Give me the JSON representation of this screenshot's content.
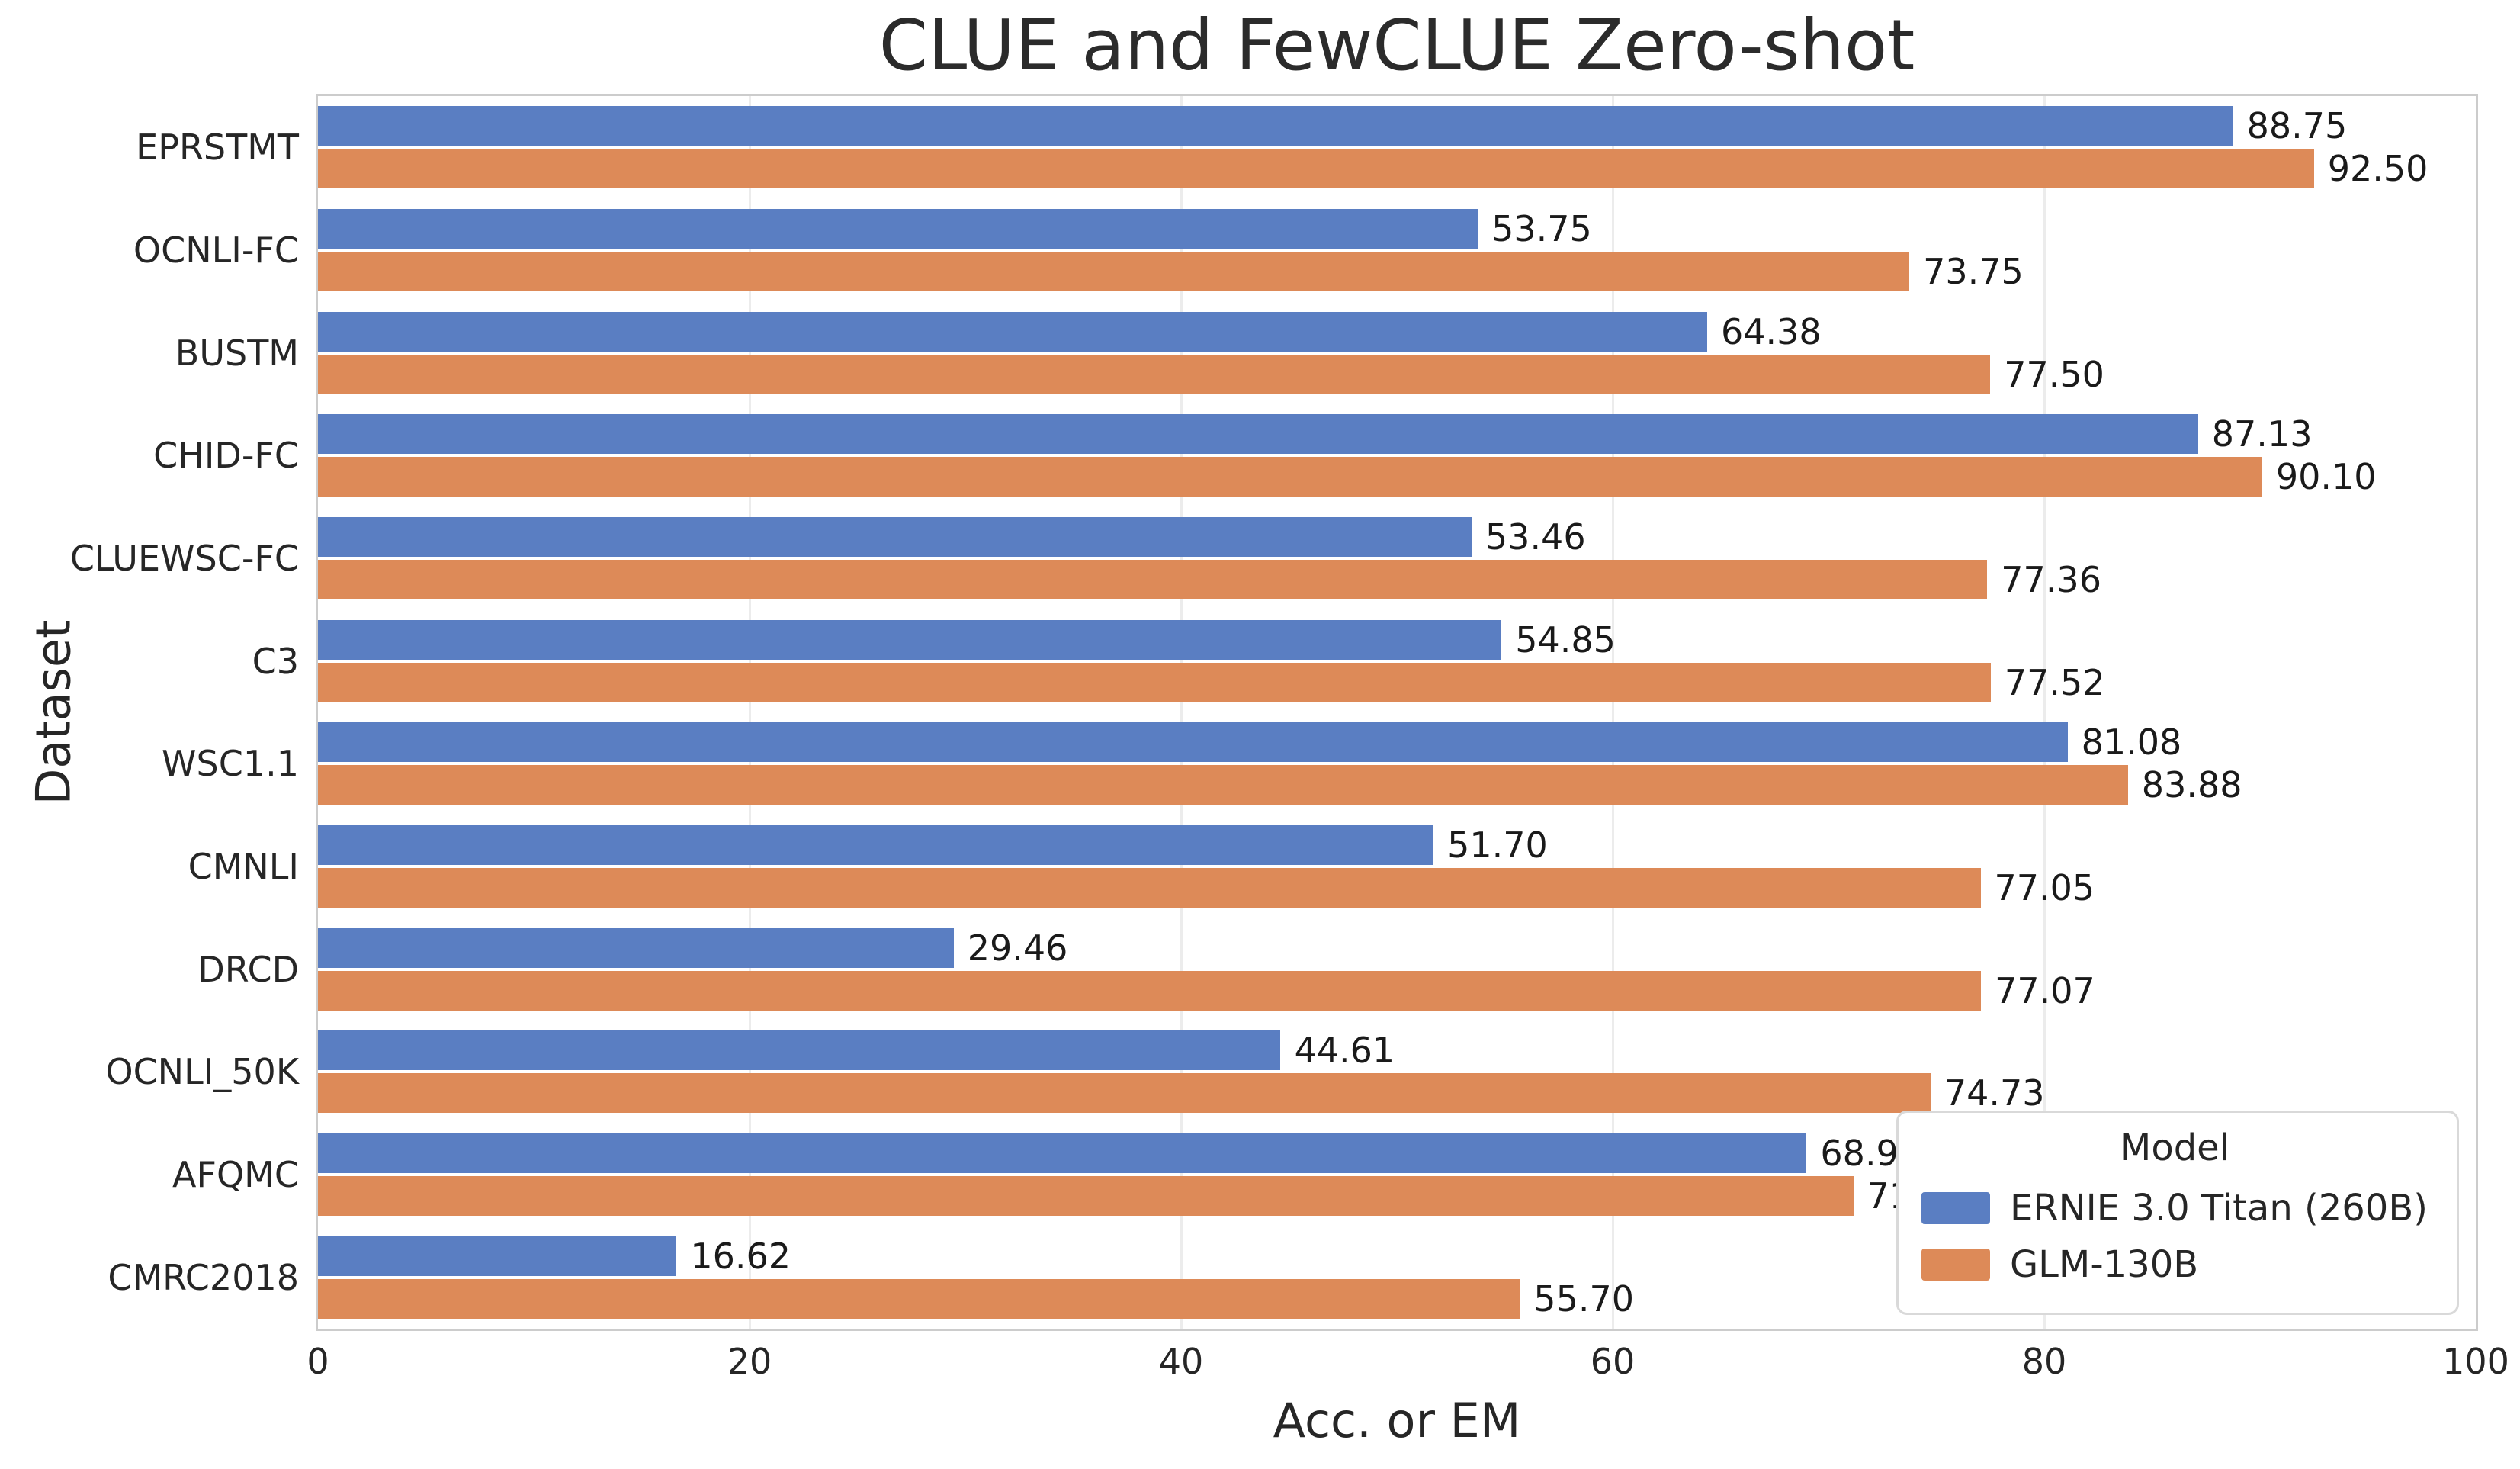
{
  "chart_data": {
    "type": "bar",
    "orientation": "horizontal",
    "title": "CLUE and FewCLUE Zero-shot",
    "xlabel": "Acc. or EM",
    "ylabel": "Dataset",
    "xlim": [
      0,
      100
    ],
    "xticks": [
      0,
      20,
      40,
      60,
      80,
      100
    ],
    "grid": "vertical-light",
    "legend_title": "Model",
    "legend_position": "lower-right",
    "categories": [
      "EPRSTMT",
      "OCNLI-FC",
      "BUSTM",
      "CHID-FC",
      "CLUEWSC-FC",
      "C3",
      "WSC1.1",
      "CMNLI",
      "DRCD",
      "OCNLI_50K",
      "AFQMC",
      "CMRC2018"
    ],
    "series": [
      {
        "name": "ERNIE 3.0 Titan (260B)",
        "color": "#5a7ec2",
        "values": [
          88.75,
          53.75,
          64.38,
          87.13,
          53.46,
          54.85,
          81.08,
          51.7,
          29.46,
          44.61,
          68.99,
          16.62
        ]
      },
      {
        "name": "GLM-130B",
        "color": "#dd8a58",
        "values": [
          92.5,
          73.75,
          77.5,
          90.1,
          77.36,
          77.52,
          83.88,
          77.05,
          77.07,
          74.73,
          71.15,
          55.7
        ]
      }
    ],
    "value_label_decimals": 2
  },
  "colors": {
    "spine": "#cccccc",
    "grid": "#ececec",
    "text": "#262626"
  }
}
